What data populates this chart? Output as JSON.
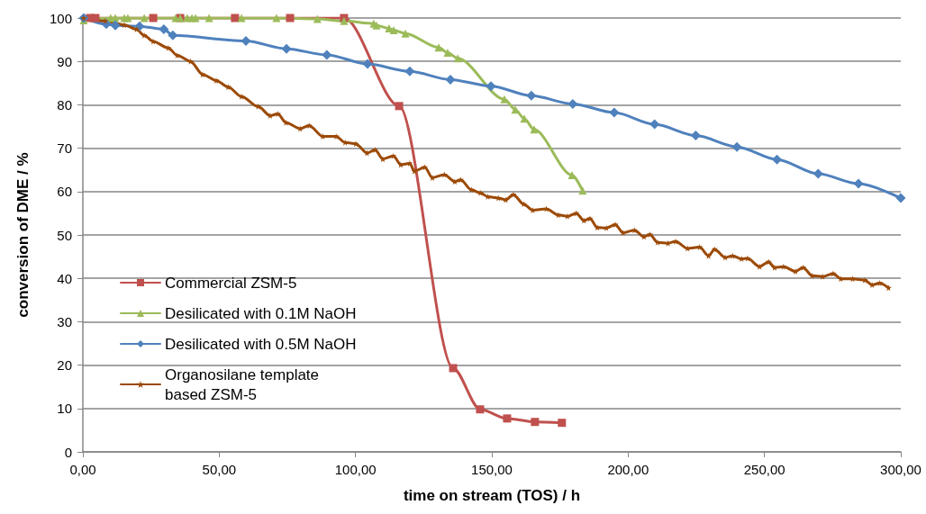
{
  "chart_data": {
    "type": "line",
    "xlabel": "time on stream (TOS) / h",
    "ylabel": "conversion of DME / %",
    "xlim": [
      0,
      300
    ],
    "xticks": [
      {
        "value": 0,
        "label": "0,00"
      },
      {
        "value": 50,
        "label": "50,00"
      },
      {
        "value": 100,
        "label": "100,00"
      },
      {
        "value": 150,
        "label": "150,00"
      },
      {
        "value": 200,
        "label": "200,00"
      },
      {
        "value": 250,
        "label": "250,00"
      },
      {
        "value": 300,
        "label": "300,00"
      }
    ],
    "ylim": [
      0,
      100
    ],
    "yticks": [
      0,
      10,
      20,
      30,
      40,
      50,
      60,
      70,
      80,
      90,
      100
    ],
    "grid": "y",
    "legend": "left",
    "line_style": "solid",
    "series": [
      {
        "name": "Commercial ZSM-5",
        "color": "#c0504d",
        "marker": "square",
        "x": [
          2.6,
          4.6,
          25.8,
          35.7,
          55.8,
          76,
          95.8,
          116,
          135.8,
          145.7,
          155.6,
          165.8,
          175.7
        ],
        "values": [
          100,
          100,
          100,
          100,
          100,
          100,
          100,
          79.7,
          19.3,
          9.8,
          7.7,
          6.9,
          6.7
        ]
      },
      {
        "name": "Desilicated with 0.1M NaOH",
        "color": "#9bbb59",
        "marker": "triangle",
        "x": [
          0.3,
          10.2,
          11.9,
          15.2,
          16.5,
          22.5,
          34,
          35.7,
          38.3,
          40,
          41.3,
          46.3,
          58.2,
          71,
          86,
          95.8,
          106.7,
          107.7,
          112.3,
          114,
          118.3,
          130.5,
          133.8,
          137.5,
          154.6,
          158.6,
          161.9,
          165.5,
          179.4,
          183.3
        ],
        "values": [
          99.5,
          100,
          100,
          100,
          100,
          100,
          100,
          100,
          100,
          100,
          100,
          100,
          100,
          100,
          99.8,
          99.3,
          98.7,
          98.3,
          97.6,
          97.2,
          96.4,
          93.2,
          92,
          90.7,
          81.3,
          78.9,
          76.8,
          74.3,
          63.8,
          60.2
        ]
      },
      {
        "name": "Desilicated with 0.5M NaOH",
        "color": "#4f81bd",
        "marker": "diamond",
        "x": [
          0.3,
          8.6,
          11.9,
          20.8,
          29.7,
          33,
          59.8,
          74.7,
          89.5,
          104.4,
          119.9,
          134.8,
          149.7,
          164.5,
          179.7,
          194.9,
          209.7,
          224.8,
          239.9,
          254.6,
          269.7,
          284.5,
          300
        ],
        "values": [
          100,
          98.6,
          98.3,
          98.1,
          97.4,
          96,
          94.7,
          92.9,
          91.5,
          89.4,
          87.7,
          85.8,
          84.3,
          82.1,
          80.2,
          78.2,
          75.5,
          72.9,
          70.3,
          67.4,
          64.1,
          61.8,
          58.5
        ]
      },
      {
        "name": "Organosilane template based ZSM-5",
        "color": "#9c4a06",
        "marker": "star",
        "x": [
          0.3,
          8.2,
          15.2,
          19.7,
          22.5,
          25.8,
          31.3,
          34.6,
          39.5,
          43.9,
          48.9,
          53.3,
          58.2,
          64.3,
          68.7,
          71.5,
          74.5,
          79.7,
          83,
          88,
          92.9,
          96.2,
          100.1,
          104.2,
          107.2,
          110,
          113.9,
          116.6,
          119.9,
          121.6,
          125.4,
          128.2,
          132.6,
          136.4,
          138.6,
          142.5,
          145.8,
          148.5,
          152.4,
          155.1,
          157.9,
          161.7,
          165,
          170,
          174.4,
          177.7,
          181,
          183.8,
          186,
          188.7,
          192,
          195.3,
          198.1,
          202.3,
          205.8,
          208,
          210.8,
          214.6,
          217.4,
          221.8,
          226.2,
          229.5,
          231.7,
          235.6,
          238.3,
          241.6,
          243.8,
          248.2,
          251.5,
          253.7,
          257,
          261.4,
          264.2,
          267.5,
          271.3,
          275.2,
          278,
          282.3,
          286.8,
          289.5,
          292.3,
          295.5
        ],
        "values": [
          100,
          99.3,
          98.4,
          97.4,
          96,
          94.6,
          93.1,
          91.4,
          90,
          87,
          85.6,
          84.1,
          81.9,
          79.6,
          77.5,
          77.9,
          75.9,
          74.5,
          75.2,
          72.7,
          72.7,
          71.3,
          71,
          68.9,
          69.6,
          67.5,
          68.2,
          66.2,
          66.5,
          64.7,
          65.6,
          63.2,
          63.9,
          62.3,
          62.7,
          60.4,
          59.7,
          58.8,
          58.5,
          58.1,
          59.3,
          57.1,
          55.7,
          56,
          54.6,
          54.3,
          55,
          53.3,
          53.8,
          51.7,
          51.6,
          52.4,
          50.5,
          51.1,
          49.6,
          50.1,
          48.3,
          48.1,
          48.5,
          46.9,
          47.2,
          45.2,
          46.7,
          44.8,
          45.2,
          44.5,
          44.6,
          42.7,
          43.8,
          42.5,
          42.7,
          41.6,
          42.5,
          40.6,
          40.4,
          41.1,
          39.9,
          39.9,
          39.6,
          38.5,
          38.9,
          37.8
        ]
      }
    ]
  }
}
